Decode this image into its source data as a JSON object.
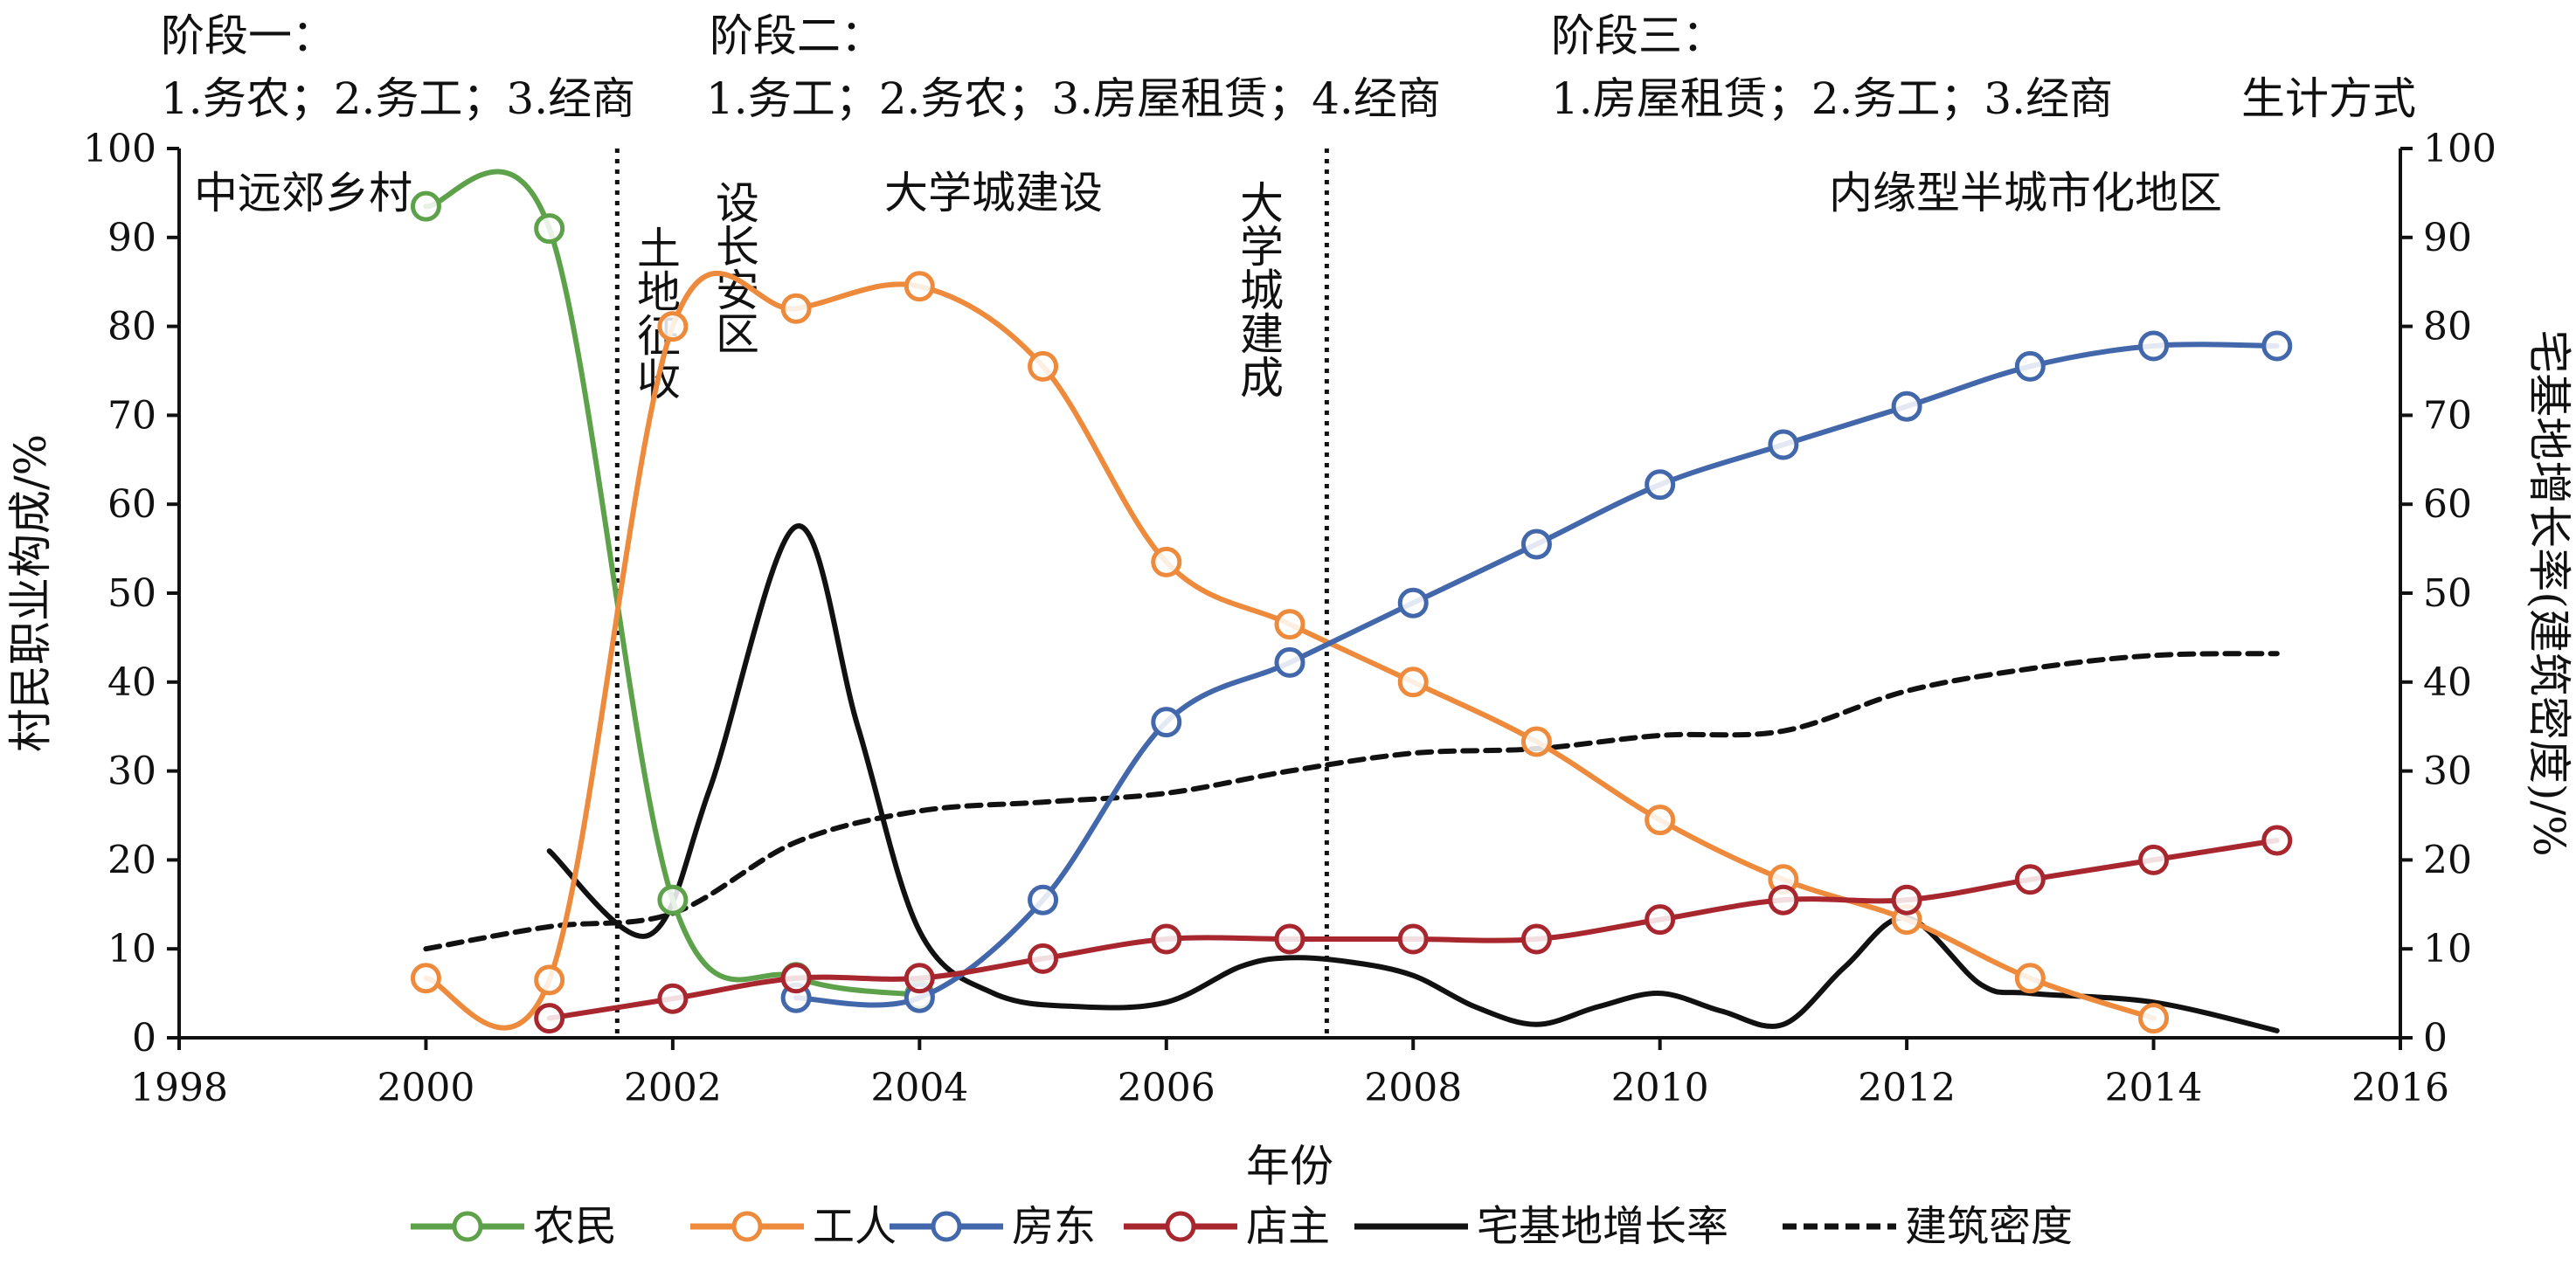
{
  "chart_data": {
    "type": "line",
    "xlabel": "年份",
    "ylabel": "村民职业构成/%",
    "y2label": "宅基地增长率(建筑密度)/%",
    "xlim": [
      1998,
      2016
    ],
    "ylim": [
      0,
      100
    ],
    "y2lim": [
      0,
      100
    ],
    "xticks": [
      "1998",
      "2000",
      "2002",
      "2004",
      "2006",
      "2008",
      "2010",
      "2012",
      "2014",
      "2016"
    ],
    "yticks": [
      "0",
      "10",
      "20",
      "30",
      "40",
      "50",
      "60",
      "70",
      "80",
      "90",
      "100"
    ],
    "grid": false,
    "legend_position": "bottom",
    "stages": [
      {
        "title": "阶段一：",
        "items": "1.务农；2.务工；3.经商"
      },
      {
        "title": "阶段二：",
        "items": "1.务工；2.务农；3.房屋租赁；4.经商"
      },
      {
        "title": "阶段三：",
        "items": "1.房屋租赁；2.务工；3.经商"
      }
    ],
    "stage_caption": "生计方式",
    "vlines": [
      2001.55,
      2007.3
    ],
    "annotations": {
      "rural": "中远郊乡村",
      "land": "土地征收",
      "district": "设长安区",
      "construction": "大学城建设",
      "completed": "大学城建成",
      "semi_urban": "内缘型半城市化地区"
    },
    "series": [
      {
        "name": "农民",
        "color": "#5da24a",
        "marker": "circle",
        "dash": false,
        "points": [
          [
            2000,
            93.5
          ],
          [
            2001,
            91
          ],
          [
            2002,
            15.5
          ],
          [
            2003,
            6.8
          ],
          [
            2004,
            4.8
          ]
        ]
      },
      {
        "name": "工人",
        "color": "#ee8a3c",
        "marker": "circle",
        "dash": false,
        "points": [
          [
            2000,
            6.7
          ],
          [
            2001,
            6.5
          ],
          [
            2002,
            80
          ],
          [
            2003,
            82
          ],
          [
            2004,
            84.5
          ],
          [
            2005,
            75.5
          ],
          [
            2006,
            53.5
          ],
          [
            2007,
            46.5
          ],
          [
            2008,
            40
          ],
          [
            2009,
            33.3
          ],
          [
            2010,
            24.5
          ],
          [
            2011,
            17.8
          ],
          [
            2012,
            13.3
          ],
          [
            2013,
            6.7
          ],
          [
            2014,
            2.2
          ]
        ]
      },
      {
        "name": "房东",
        "color": "#4267ab",
        "marker": "circle",
        "dash": false,
        "points": [
          [
            2003,
            4.5
          ],
          [
            2004,
            4.5
          ],
          [
            2005,
            15.5
          ],
          [
            2006,
            35.5
          ],
          [
            2007,
            42.2
          ],
          [
            2008,
            48.9
          ],
          [
            2009,
            55.5
          ],
          [
            2010,
            62.2
          ],
          [
            2011,
            66.7
          ],
          [
            2012,
            71
          ],
          [
            2013,
            75.5
          ],
          [
            2014,
            77.8
          ],
          [
            2015,
            77.8
          ]
        ]
      },
      {
        "name": "店主",
        "color": "#a8272e",
        "marker": "circle",
        "dash": false,
        "points": [
          [
            2001,
            2.2
          ],
          [
            2002,
            4.4
          ],
          [
            2003,
            6.7
          ],
          [
            2004,
            6.7
          ],
          [
            2005,
            8.9
          ],
          [
            2006,
            11.1
          ],
          [
            2007,
            11.1
          ],
          [
            2008,
            11.1
          ],
          [
            2009,
            11.1
          ],
          [
            2010,
            13.3
          ],
          [
            2011,
            15.5
          ],
          [
            2012,
            15.5
          ],
          [
            2013,
            17.8
          ],
          [
            2014,
            20
          ],
          [
            2015,
            22.2
          ]
        ]
      },
      {
        "name": "宅基地增长率",
        "color": "#111111",
        "marker": "none",
        "dash": false,
        "points": [
          [
            2001,
            21
          ],
          [
            2001.8,
            11.5
          ],
          [
            2002.3,
            28
          ],
          [
            2003,
            57.5
          ],
          [
            2003.5,
            35
          ],
          [
            2004,
            12
          ],
          [
            2004.6,
            5
          ],
          [
            2005.3,
            3.5
          ],
          [
            2006,
            4
          ],
          [
            2006.6,
            8
          ],
          [
            2007,
            9
          ],
          [
            2007.5,
            8.5
          ],
          [
            2008,
            7
          ],
          [
            2008.5,
            3.5
          ],
          [
            2009,
            1.5
          ],
          [
            2009.5,
            3.5
          ],
          [
            2010,
            5
          ],
          [
            2010.5,
            3
          ],
          [
            2011,
            1.5
          ],
          [
            2011.5,
            8
          ],
          [
            2012,
            13.5
          ],
          [
            2012.6,
            6
          ],
          [
            2013,
            5
          ],
          [
            2014,
            4
          ],
          [
            2015,
            0.8
          ]
        ]
      },
      {
        "name": "建筑密度",
        "color": "#111111",
        "marker": "none",
        "dash": true,
        "points": [
          [
            2000,
            10
          ],
          [
            2001,
            12.5
          ],
          [
            2002,
            14
          ],
          [
            2003,
            22
          ],
          [
            2004,
            25.5
          ],
          [
            2005,
            26.5
          ],
          [
            2006,
            27.5
          ],
          [
            2007,
            30
          ],
          [
            2008,
            32
          ],
          [
            2009,
            32.5
          ],
          [
            2010,
            34
          ],
          [
            2011,
            34.5
          ],
          [
            2012,
            39
          ],
          [
            2013,
            41.5
          ],
          [
            2014,
            43
          ],
          [
            2015,
            43.2
          ]
        ]
      }
    ]
  }
}
